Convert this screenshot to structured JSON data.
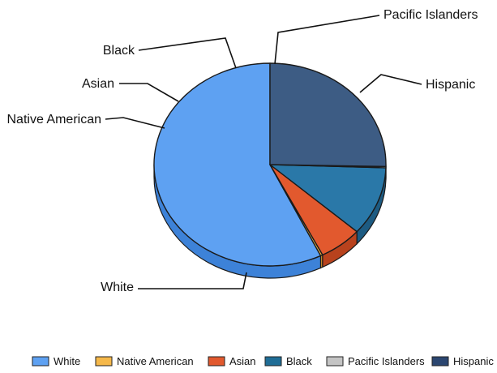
{
  "chart_data": {
    "type": "pie",
    "title": "",
    "categories": [
      "White",
      "Native American",
      "Asian",
      "Black",
      "Pacific Islanders",
      "Hispanic"
    ],
    "values": [
      57.2,
      0.3,
      6.0,
      11.0,
      0.2,
      25.3
    ],
    "unit": "percent (estimated)",
    "start_angle_deg": 90,
    "direction": "counterclockwise from 12 o'clock",
    "style": "3d",
    "legend_position": "bottom",
    "colors": {
      "White": "#5ea1f2",
      "Native American": "#f5b84a",
      "Asian": "#e2592e",
      "Black": "#2a78a8",
      "Pacific Islanders": "#c4c4c4",
      "Hispanic": "#3d5c84"
    },
    "side_colors": {
      "White": "#3d82d8",
      "Native American": "#d9952a",
      "Asian": "#b8421d",
      "Black": "#1d5b82",
      "Pacific Islanders": "#9c9c9c",
      "Hispanic": "#2b4466"
    },
    "legend_colors": {
      "White": "#5ea1f2",
      "Native American": "#f5b84a",
      "Asian": "#e2592e",
      "Black": "#1f6d96",
      "Pacific Islanders": "#c4c4c4",
      "Hispanic": "#2b4670"
    }
  }
}
